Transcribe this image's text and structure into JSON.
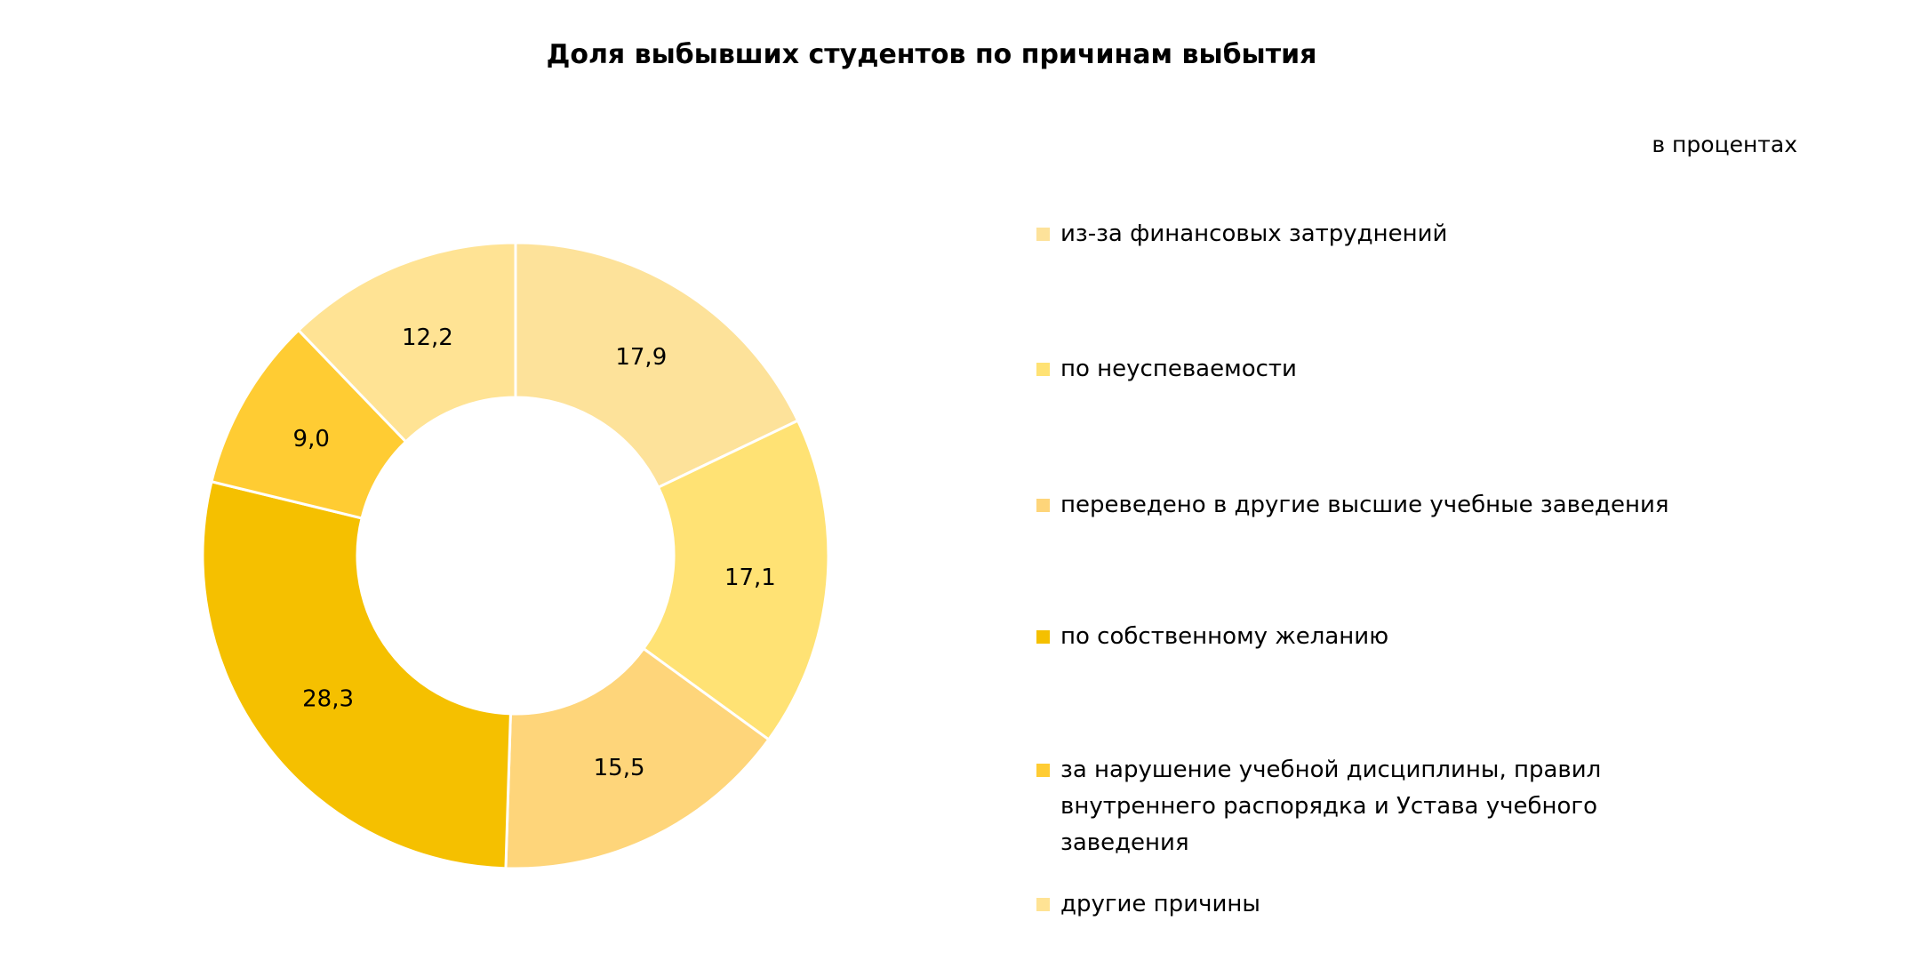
{
  "chart_data": {
    "type": "pie",
    "variant": "donut",
    "title": "Доля выбывших студентов по причинам выбытия",
    "unit_note": "в процентах",
    "legend_position": "right",
    "categories": [
      "из-за финансовых затруднений",
      "по неуспеваемости",
      "переведено в другие высшие учебные заведения",
      "по собственному желанию",
      "за нарушение учебной дисциплины, правил внутреннего распорядка и Устава учебного заведения",
      "другие причины"
    ],
    "values": [
      17.9,
      17.1,
      15.5,
      28.3,
      9.0,
      12.2
    ],
    "data_labels": [
      "17,9",
      "17,1",
      "15,5",
      "28,3",
      "9,0",
      "12,2"
    ],
    "colors": [
      "#FDE29A",
      "#FFE274",
      "#FED57A",
      "#F5C000",
      "#FFCC33",
      "#FFE394"
    ]
  }
}
